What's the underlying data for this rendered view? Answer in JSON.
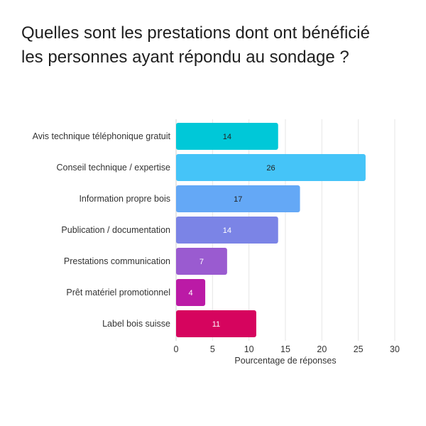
{
  "title": {
    "line1": "Quelles sont les prestations dont ont bénéficié",
    "line2": "les personnes ayant répondu au sondage ?"
  },
  "chart_data": {
    "type": "bar",
    "orientation": "horizontal",
    "title": "Quelles sont les prestations dont ont bénéficié les personnes ayant répondu au sondage ?",
    "categories": [
      "Avis technique téléphonique gratuit",
      "Conseil technique / expertise",
      "Information propre bois",
      "Publication / documentation",
      "Prestations communication",
      "Prêt matériel promotionnel",
      "Label bois suisse"
    ],
    "values": [
      14,
      26,
      17,
      14,
      7,
      4,
      11
    ],
    "colors": [
      "#00c8d8",
      "#45c4f8",
      "#64a8f6",
      "#7b84e6",
      "#9a5bd0",
      "#bb1aa6",
      "#d6045e"
    ],
    "value_label_colors": [
      "#222222",
      "#222222",
      "#222222",
      "#ffffff",
      "#ffffff",
      "#ffffff",
      "#ffffff"
    ],
    "xlabel": "Pourcentage de réponses",
    "ylabel": "",
    "xlim": [
      0,
      30
    ],
    "xticks": [
      0,
      5,
      10,
      15,
      20,
      25,
      30
    ],
    "grid": true
  }
}
